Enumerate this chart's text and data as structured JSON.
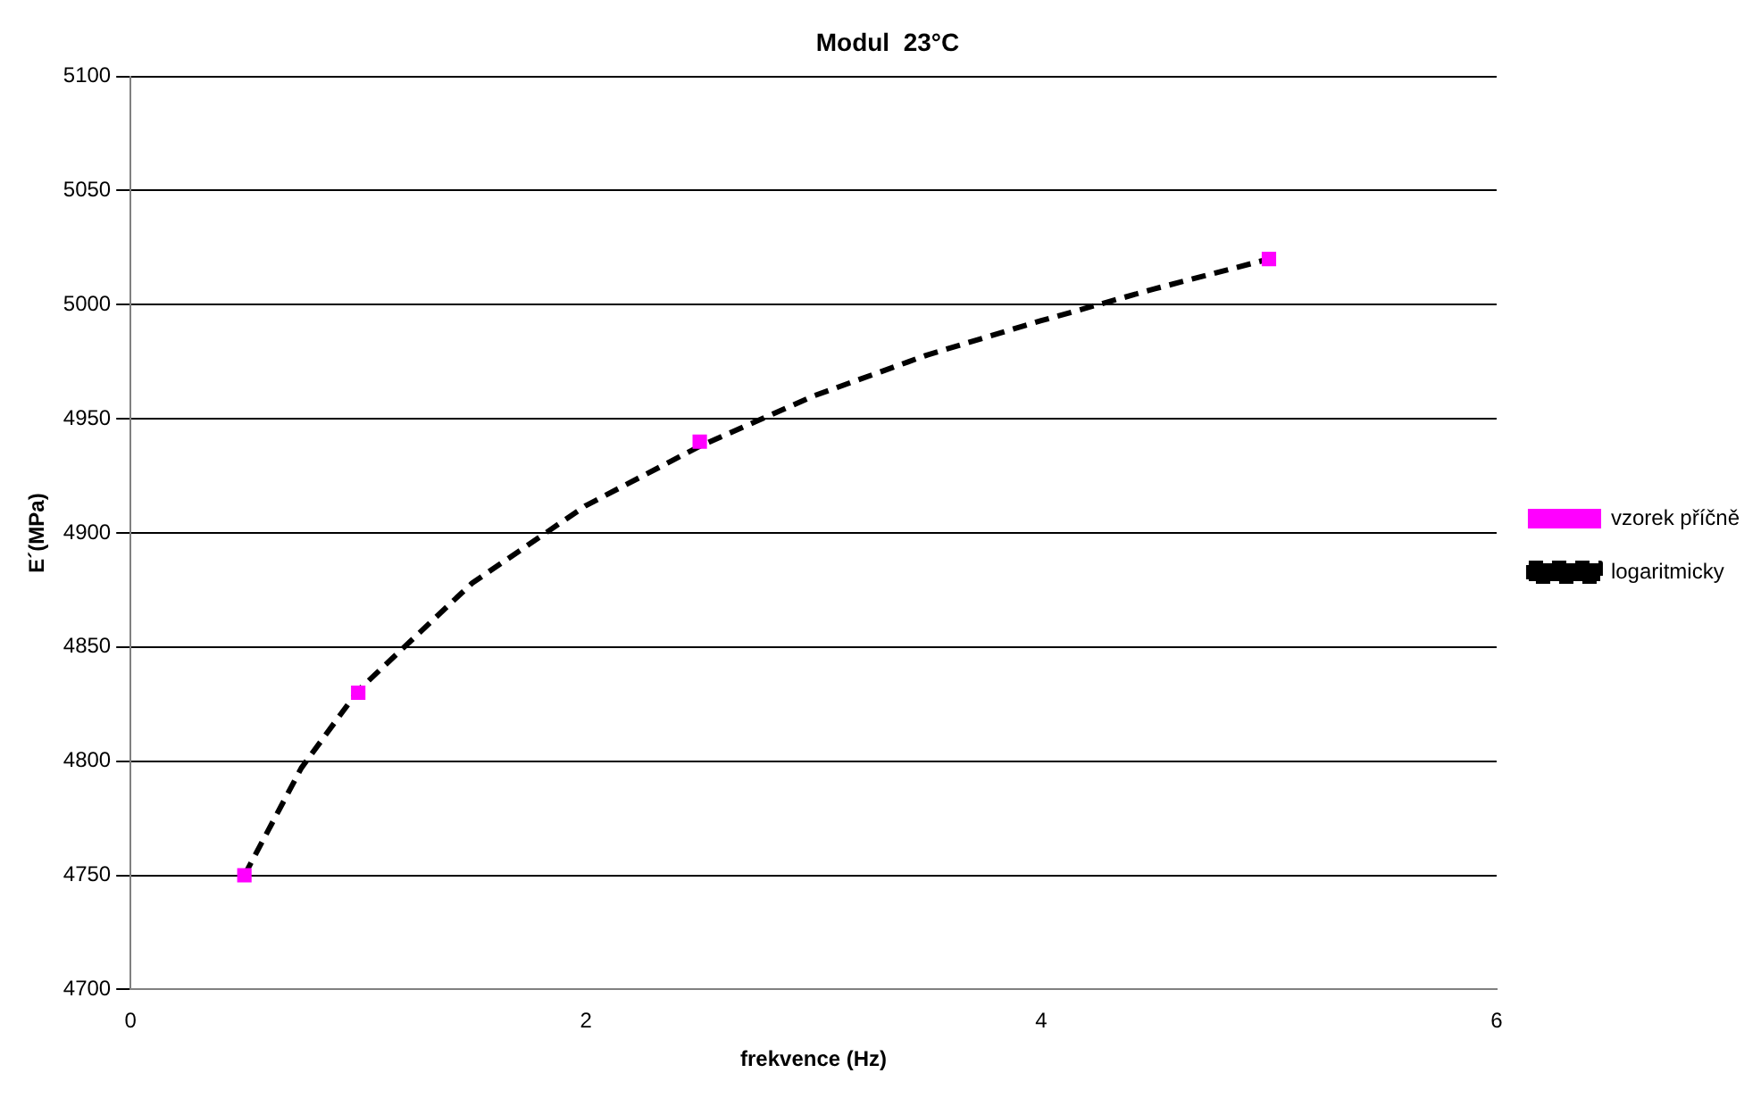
{
  "chart_data": {
    "type": "scatter",
    "title": "Modul  23°C",
    "xlabel": "frekvence (Hz)",
    "ylabel": "E´(MPa)",
    "xlim": [
      0,
      6
    ],
    "xticks": [
      0,
      2,
      4,
      6
    ],
    "ylim": [
      4700,
      5100
    ],
    "yticks": [
      4700,
      4750,
      4800,
      4850,
      4900,
      4950,
      5000,
      5050,
      5100
    ],
    "grid": "y",
    "legend": "right",
    "series": [
      {
        "name": "vzorek příčně",
        "color": "#ff00ff",
        "marker": "square",
        "x": [
          0.5,
          1,
          2.5,
          5
        ],
        "values": [
          4750,
          4830,
          4940,
          5020
        ]
      },
      {
        "name": "logaritmicky",
        "type": "line",
        "color": "#000000",
        "line_style": "dashed",
        "marker": "none",
        "x": [
          0.5,
          0.75,
          1,
          1.5,
          2,
          2.5,
          3,
          3.5,
          4,
          4.5,
          5
        ],
        "values": [
          4750,
          4797,
          4831,
          4878,
          4912,
          4938,
          4960,
          4978,
          4993,
          5007,
          5020
        ]
      }
    ]
  }
}
